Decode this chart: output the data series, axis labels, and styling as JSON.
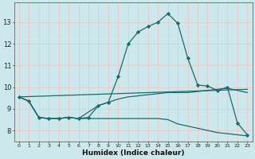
{
  "xlabel": "Humidex (Indice chaleur)",
  "bg_color": "#cce8ec",
  "line_color": "#1a6b6b",
  "grid_color": "#e8c8c8",
  "xlim": [
    -0.5,
    23.5
  ],
  "ylim": [
    7.5,
    13.9
  ],
  "xticks": [
    0,
    1,
    2,
    3,
    4,
    5,
    6,
    7,
    8,
    9,
    10,
    11,
    12,
    13,
    14,
    15,
    16,
    17,
    18,
    19,
    20,
    21,
    22,
    23
  ],
  "yticks": [
    8,
    9,
    10,
    11,
    12,
    13
  ],
  "line1_x": [
    0,
    1,
    2,
    3,
    4,
    5,
    6,
    7,
    8,
    9,
    10,
    11,
    12,
    13,
    14,
    15,
    16,
    17,
    18,
    19,
    20,
    21,
    22,
    23
  ],
  "line1_y": [
    9.55,
    9.35,
    8.6,
    8.55,
    8.55,
    8.6,
    8.55,
    8.6,
    9.15,
    9.3,
    10.5,
    12.0,
    12.55,
    12.8,
    13.0,
    13.4,
    12.95,
    11.35,
    10.1,
    10.05,
    9.85,
    10.0,
    8.35,
    7.8
  ],
  "line2_x": [
    0,
    1,
    2,
    3,
    4,
    5,
    6,
    7,
    8,
    9,
    10,
    11,
    12,
    13,
    14,
    15,
    16,
    17,
    18,
    19,
    20,
    21,
    22,
    23
  ],
  "line2_y": [
    9.55,
    9.35,
    8.6,
    8.55,
    8.55,
    8.6,
    8.55,
    8.55,
    8.55,
    8.55,
    8.55,
    8.55,
    8.55,
    8.55,
    8.55,
    8.5,
    8.3,
    8.2,
    8.1,
    8.0,
    7.9,
    7.85,
    7.8,
    7.75
  ],
  "line3_x": [
    0,
    23
  ],
  "line3_y": [
    9.55,
    9.9
  ],
  "line4_x": [
    0,
    1,
    2,
    3,
    4,
    5,
    6,
    7,
    8,
    9,
    10,
    11,
    12,
    13,
    14,
    15,
    16,
    17,
    18,
    19,
    20,
    21,
    22,
    23
  ],
  "line4_y": [
    9.55,
    9.35,
    8.6,
    8.55,
    8.55,
    8.6,
    8.55,
    8.85,
    9.15,
    9.3,
    9.45,
    9.55,
    9.6,
    9.65,
    9.7,
    9.75,
    9.75,
    9.75,
    9.8,
    9.85,
    9.9,
    9.95,
    9.85,
    9.75
  ]
}
